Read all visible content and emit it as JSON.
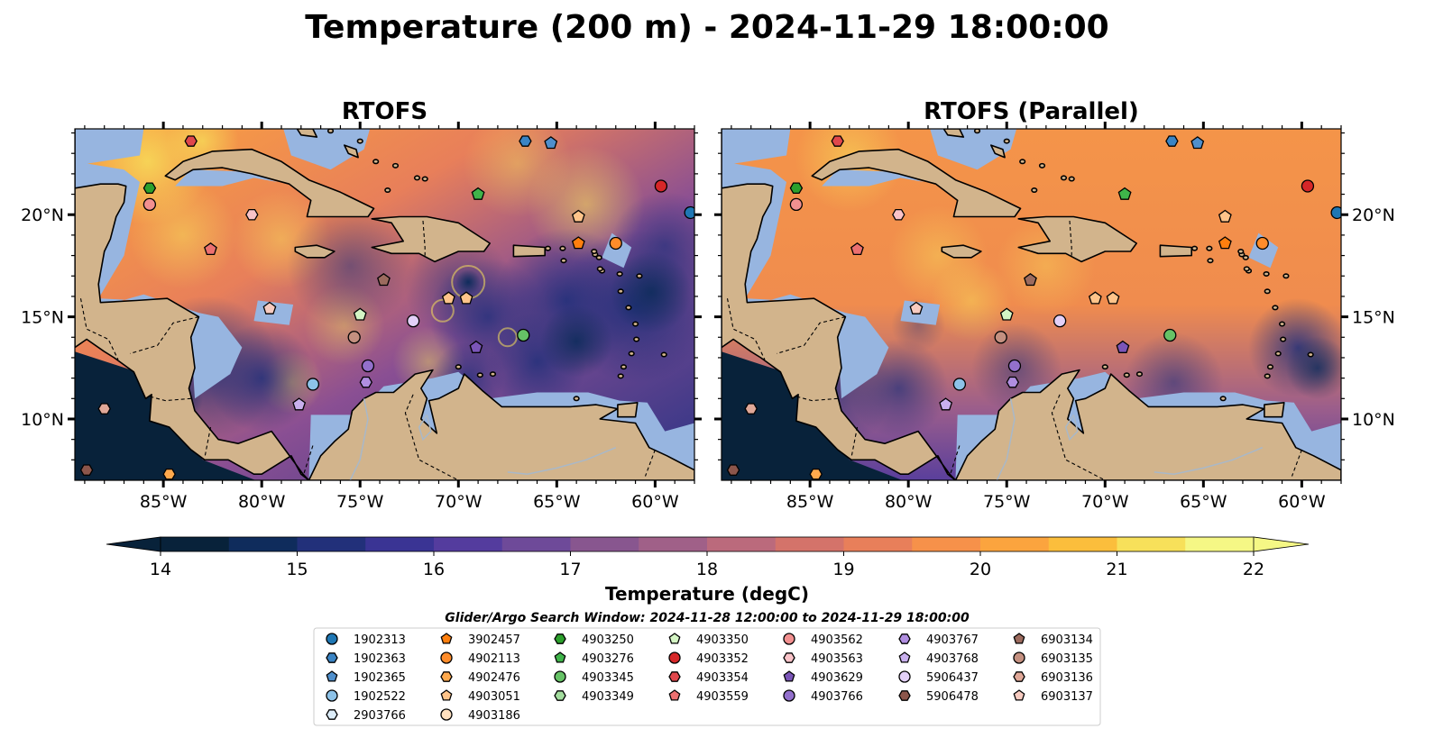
{
  "figure": {
    "title": "Temperature (200 m) - 2024-11-29 18:00:00"
  },
  "panels": [
    {
      "title": "RTOFS",
      "variant": "main"
    },
    {
      "title": "RTOFS (Parallel)",
      "variant": "parallel"
    }
  ],
  "map": {
    "lon_range": [
      -89.5,
      -58
    ],
    "lat_range": [
      7,
      24.2
    ],
    "x_ticks": [
      {
        "lon": -85,
        "label": "85°W"
      },
      {
        "lon": -80,
        "label": "80°W"
      },
      {
        "lon": -75,
        "label": "75°W"
      },
      {
        "lon": -70,
        "label": "70°W"
      },
      {
        "lon": -65,
        "label": "65°W"
      },
      {
        "lon": -60,
        "label": "60°W"
      }
    ],
    "y_ticks": [
      {
        "lat": 20,
        "label": "20°N"
      },
      {
        "lat": 15,
        "label": "15°N"
      },
      {
        "lat": 10,
        "label": "10°N"
      }
    ],
    "colors": {
      "land": "#d2b48c",
      "shelf": "#97b5e0",
      "deep": "#08223a",
      "coast": "#000000"
    }
  },
  "colorbar": {
    "label": "Temperature (degC)",
    "min": 14,
    "max": 22,
    "ticks": [
      "14",
      "15",
      "16",
      "17",
      "18",
      "19",
      "20",
      "21",
      "22"
    ],
    "extend": "both",
    "colormap": [
      "#08223a",
      "#0f2c5c",
      "#22307a",
      "#3a3494",
      "#543c9e",
      "#6e4a99",
      "#88568f",
      "#a06088",
      "#bb6a7c",
      "#d4736a",
      "#e87f5a",
      "#f6914a",
      "#fba43e",
      "#fbbe3c",
      "#f7e05a",
      "#f5f785"
    ]
  },
  "legend": {
    "title": "Glider/Argo Search Window: 2024-11-28 12:00:00 to 2024-11-29 18:00:00",
    "columns": [
      [
        {
          "id": "1902313",
          "marker": "circle",
          "color": "#1f77b4"
        },
        {
          "id": "1902363",
          "marker": "hexagon",
          "color": "#3a84c4"
        },
        {
          "id": "1902365",
          "marker": "pentagon",
          "color": "#4f8fcc"
        },
        {
          "id": "1902522",
          "marker": "circle",
          "color": "#8dc2e8"
        },
        {
          "id": "2903766",
          "marker": "hexagon",
          "color": "#dcecf8"
        }
      ],
      [
        {
          "id": "3902457",
          "marker": "pentagon",
          "color": "#ff7f0e"
        },
        {
          "id": "4902113",
          "marker": "circle",
          "color": "#ff8c2a"
        },
        {
          "id": "4902476",
          "marker": "hexagon",
          "color": "#ffa94d"
        },
        {
          "id": "4903051",
          "marker": "pentagon",
          "color": "#ffc48a"
        },
        {
          "id": "4903186",
          "marker": "circle",
          "color": "#ffe0bf"
        }
      ],
      [
        {
          "id": "4903250",
          "marker": "hexagon",
          "color": "#2ca02c"
        },
        {
          "id": "4903276",
          "marker": "pentagon",
          "color": "#3fb44a"
        },
        {
          "id": "4903345",
          "marker": "circle",
          "color": "#66c266"
        },
        {
          "id": "4903349",
          "marker": "hexagon",
          "color": "#a3dd9e"
        }
      ],
      [
        {
          "id": "4903350",
          "marker": "pentagon",
          "color": "#d4f5c4"
        },
        {
          "id": "4903352",
          "marker": "circle",
          "color": "#d62728"
        },
        {
          "id": "4903354",
          "marker": "hexagon",
          "color": "#e0474c"
        },
        {
          "id": "4903559",
          "marker": "pentagon",
          "color": "#ec7070"
        }
      ],
      [
        {
          "id": "4903562",
          "marker": "circle",
          "color": "#f29090"
        },
        {
          "id": "4903563",
          "marker": "hexagon",
          "color": "#f9c3c8"
        },
        {
          "id": "4903629",
          "marker": "pentagon",
          "color": "#7b55b8"
        },
        {
          "id": "4903766",
          "marker": "circle",
          "color": "#9370cc"
        }
      ],
      [
        {
          "id": "4903767",
          "marker": "hexagon",
          "color": "#b08ee0"
        },
        {
          "id": "4903768",
          "marker": "pentagon",
          "color": "#c9b0ee"
        },
        {
          "id": "5906437",
          "marker": "circle",
          "color": "#e3d0f8"
        },
        {
          "id": "5906478",
          "marker": "hexagon",
          "color": "#8c564b"
        }
      ],
      [
        {
          "id": "6903134",
          "marker": "pentagon",
          "color": "#9c6b5e"
        },
        {
          "id": "6903135",
          "marker": "circle",
          "color": "#c49080"
        },
        {
          "id": "6903136",
          "marker": "hexagon",
          "color": "#e0a898"
        },
        {
          "id": "6903137",
          "marker": "pentagon",
          "color": "#f7cbc0"
        }
      ]
    ]
  },
  "platforms": [
    {
      "id": "1902313",
      "lon": -58.2,
      "lat": 20.1
    },
    {
      "id": "1902363",
      "lon": -66.6,
      "lat": 23.6
    },
    {
      "id": "1902365",
      "lon": -65.3,
      "lat": 23.5
    },
    {
      "id": "1902522",
      "lon": -77.4,
      "lat": 11.7
    },
    {
      "id": "3902457",
      "lon": -63.9,
      "lat": 18.6
    },
    {
      "id": "4902113",
      "lon": -62.0,
      "lat": 18.6
    },
    {
      "id": "4902476",
      "lon": -84.7,
      "lat": 7.3
    },
    {
      "id": "4903051",
      "lon": -63.9,
      "lat": 19.9
    },
    {
      "id": "4903051",
      "lon": -70.5,
      "lat": 15.9
    },
    {
      "id": "4903051",
      "lon": -69.6,
      "lat": 15.9
    },
    {
      "id": "4903250",
      "lon": -85.7,
      "lat": 21.3
    },
    {
      "id": "4903276",
      "lon": -69.0,
      "lat": 21.0
    },
    {
      "id": "4903345",
      "lon": -66.7,
      "lat": 14.1
    },
    {
      "id": "4903350",
      "lon": -75.0,
      "lat": 15.1
    },
    {
      "id": "4903352",
      "lon": -59.7,
      "lat": 21.4
    },
    {
      "id": "4903354",
      "lon": -83.6,
      "lat": 23.6
    },
    {
      "id": "4903559",
      "lon": -82.6,
      "lat": 18.3
    },
    {
      "id": "4903562",
      "lon": -85.7,
      "lat": 20.5
    },
    {
      "id": "4903563",
      "lon": -80.5,
      "lat": 20.0
    },
    {
      "id": "4903629",
      "lon": -69.1,
      "lat": 13.5
    },
    {
      "id": "4903766",
      "lon": -74.6,
      "lat": 12.6
    },
    {
      "id": "4903767",
      "lon": -74.7,
      "lat": 11.8
    },
    {
      "id": "4903768",
      "lon": -78.1,
      "lat": 10.7
    },
    {
      "id": "5906437",
      "lon": -72.3,
      "lat": 14.8
    },
    {
      "id": "5906478",
      "lon": -88.9,
      "lat": 7.5
    },
    {
      "id": "6903134",
      "lon": -73.8,
      "lat": 16.8
    },
    {
      "id": "6903135",
      "lon": -75.3,
      "lat": 14.0
    },
    {
      "id": "6903136",
      "lon": -88.0,
      "lat": 10.5
    },
    {
      "id": "6903137",
      "lon": -79.6,
      "lat": 15.4
    }
  ]
}
